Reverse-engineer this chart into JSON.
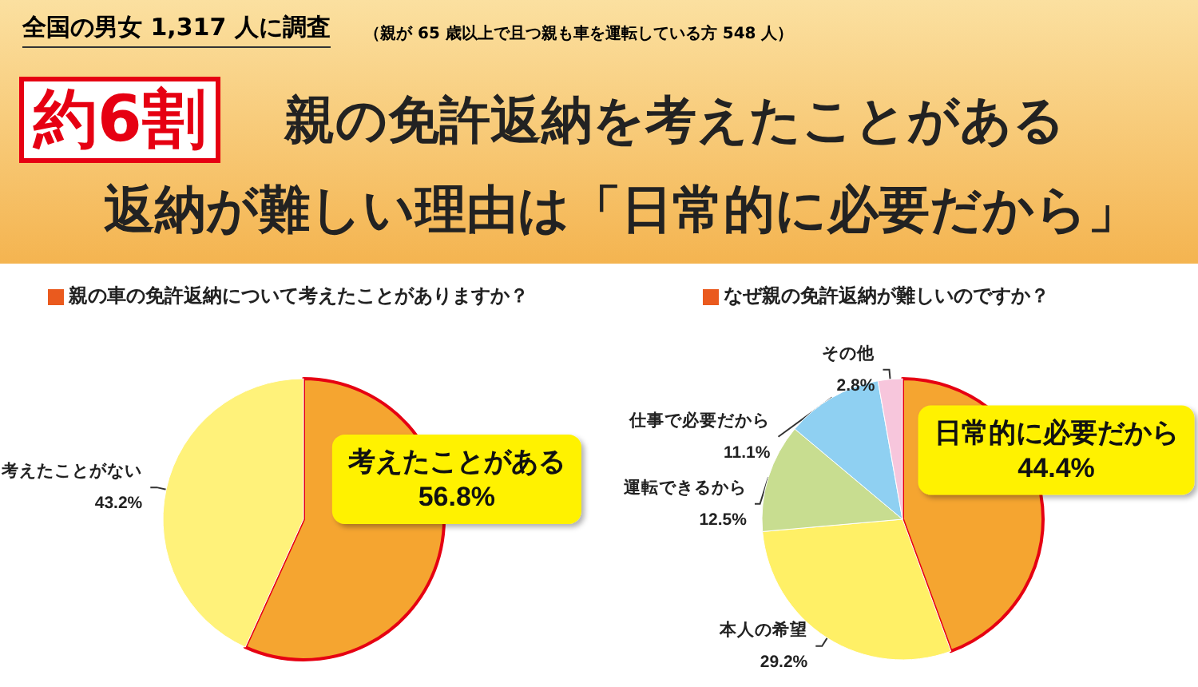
{
  "chart_data": [
    {
      "type": "other",
      "title": "約6割",
      "subtitle": "親の免許返納を考えたことがある",
      "annotations": [
        "全国の男女 1,317 人に調査",
        "（親が 65 歳以上で且つ親も車を運転している方 548 人）",
        "返納が難しい理由は「日常的に必要だから」"
      ]
    },
    {
      "type": "pie",
      "title": "親の車の免許返納について考えたことがありますか？",
      "categories": [
        "考えたことがある",
        "考えたことがない"
      ],
      "values": [
        56.8,
        43.2
      ],
      "colors": [
        "#f5a530",
        "#fff27a"
      ],
      "value_labels": [
        "56.8%",
        "43.2%"
      ]
    },
    {
      "type": "pie",
      "title": "なぜ親の免許返納が難しいのですか？",
      "categories": [
        "日常的に必要だから",
        "本人の希望",
        "運転できるから",
        "仕事で必要だから",
        "その他"
      ],
      "values": [
        44.4,
        29.2,
        12.5,
        11.1,
        2.8
      ],
      "colors": [
        "#f5a530",
        "#fff066",
        "#c8dd90",
        "#8fd0f2",
        "#f7c6dc"
      ],
      "value_labels": [
        "44.4%",
        "29.2%",
        "12.5%",
        "11.1%",
        "2.8%"
      ]
    }
  ]
}
